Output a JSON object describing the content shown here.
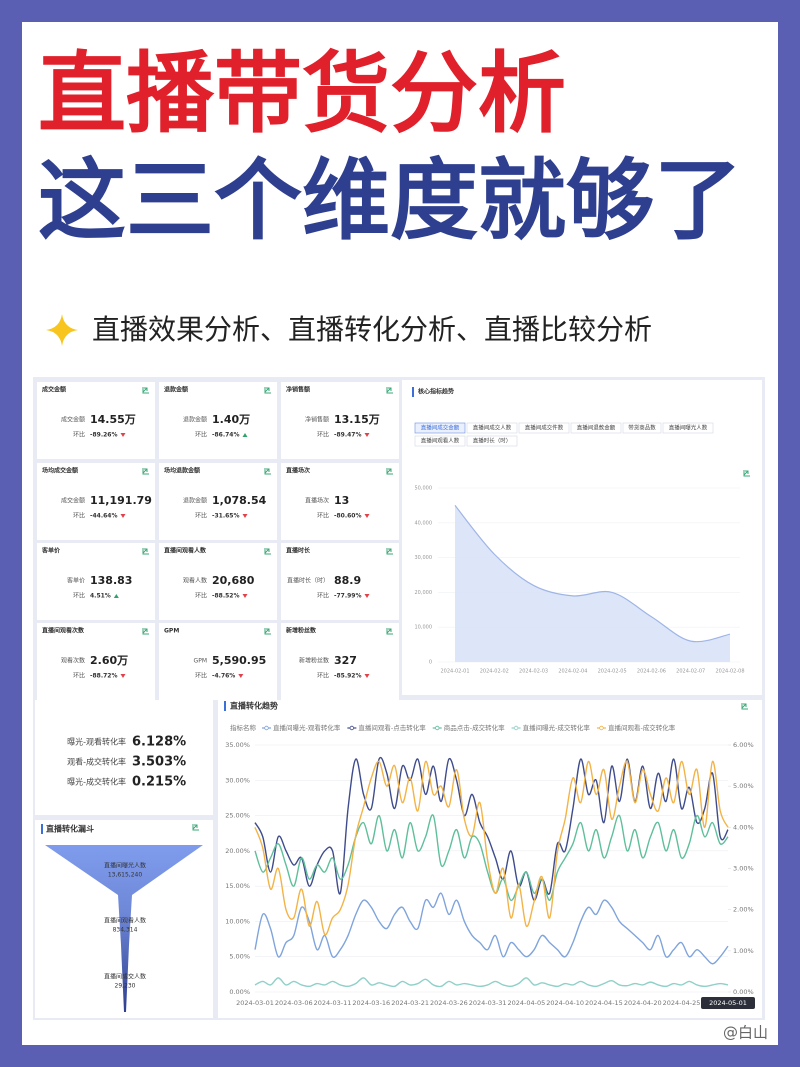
{
  "header": {
    "title_line1": "直播带货分析",
    "title_line2": "这三个维度就够了",
    "subtitle": "直播效果分析、直播转化分析、直播比较分析"
  },
  "kpi_cards": [
    {
      "title": "成交金额",
      "metric": "成交金额",
      "value": "14.55万",
      "change_label": "环比",
      "change": "-89.26%",
      "trend": "down"
    },
    {
      "title": "退款金额",
      "metric": "退款金额",
      "value": "1.40万",
      "change_label": "环比",
      "change": "-86.74%",
      "trend": "up"
    },
    {
      "title": "净销售额",
      "metric": "净销售额",
      "value": "13.15万",
      "change_label": "环比",
      "change": "-89.47%",
      "trend": "down"
    },
    {
      "title": "场均成交金额",
      "metric": "成交金额",
      "value": "11,191.79",
      "change_label": "环比",
      "change": "-44.64%",
      "trend": "down"
    },
    {
      "title": "场均退款金额",
      "metric": "退款金额",
      "value": "1,078.54",
      "change_label": "环比",
      "change": "-31.65%",
      "trend": "down"
    },
    {
      "title": "直播场次",
      "metric": "直播场次",
      "value": "13",
      "change_label": "环比",
      "change": "-80.60%",
      "trend": "down"
    },
    {
      "title": "客单价",
      "metric": "客单价",
      "value": "138.83",
      "change_label": "环比",
      "change": "4.51%",
      "trend": "up"
    },
    {
      "title": "直播间观看人数",
      "metric": "观看人数",
      "value": "20,680",
      "change_label": "环比",
      "change": "-88.52%",
      "trend": "down"
    },
    {
      "title": "直播时长",
      "metric": "直播时长（时）",
      "value": "88.9",
      "change_label": "环比",
      "change": "-77.99%",
      "trend": "down"
    },
    {
      "title": "直播间观看次数",
      "metric": "观看次数",
      "value": "2.60万",
      "change_label": "环比",
      "change": "-88.72%",
      "trend": "down"
    },
    {
      "title": "GPM",
      "metric": "GPM",
      "value": "5,590.95",
      "change_label": "环比",
      "change": "-4.76%",
      "trend": "down"
    },
    {
      "title": "新增粉丝数",
      "metric": "新增粉丝数",
      "value": "327",
      "change_label": "环比",
      "change": "-85.92%",
      "trend": "down"
    }
  ],
  "conversion_rates": [
    {
      "label": "曝光-观看转化率",
      "value": "6.128%"
    },
    {
      "label": "观看-成交转化率",
      "value": "3.503%"
    },
    {
      "label": "曝光-成交转化率",
      "value": "0.215%"
    }
  ],
  "funnel": {
    "title": "直播转化漏斗",
    "stages": [
      {
        "label": "直播间曝光人数",
        "value": "13,615,240"
      },
      {
        "label": "直播间观看人数",
        "value": "834,314"
      },
      {
        "label": "直播间成交人数",
        "value": "29,230"
      }
    ]
  },
  "watermark": "@白山",
  "chart_data": [
    {
      "type": "area",
      "title": "核心指标趋势",
      "tabs": [
        "直播间成交金额",
        "直播间成交人数",
        "直播间成交件数",
        "直播间退款金额",
        "带货商品数",
        "直播间曝光人数",
        "直播间观看人数",
        "直播时长（时）"
      ],
      "selected_tab": 0,
      "categories": [
        "2024-02-01",
        "2024-02-02",
        "2024-02-03",
        "2024-02-04",
        "2024-02-05",
        "2024-02-06",
        "2024-02-07",
        "2024-02-08"
      ],
      "values": [
        45000,
        31000,
        22000,
        19000,
        20000,
        13000,
        6000,
        8000
      ],
      "color": "#9fb5e6",
      "ylim": [
        0,
        50000
      ],
      "yticks": [
        0,
        {
          "value": 10000,
          "label": "10,000"
        },
        {
          "value": 20000,
          "label": "20,000"
        },
        {
          "value": 30000,
          "label": "30,000"
        },
        {
          "value": 40000,
          "label": "40,000"
        },
        {
          "value": 50000,
          "label": "50,000"
        }
      ],
      "grid": true
    },
    {
      "type": "line",
      "title": "直播转化趋势",
      "legend_title": "指标名称",
      "categories": [
        "2024-03-01",
        null,
        null,
        null,
        null,
        "2024-03-06",
        null,
        null,
        null,
        null,
        "2024-03-11",
        null,
        null,
        null,
        null,
        "2024-03-16",
        null,
        null,
        null,
        null,
        "2024-03-21",
        null,
        null,
        null,
        null,
        "2024-03-26",
        null,
        null,
        null,
        null,
        "2024-03-31",
        null,
        null,
        null,
        null,
        "2024-04-05",
        null,
        null,
        null,
        null,
        "2024-04-10",
        null,
        null,
        null,
        null,
        "2024-04-15",
        null,
        null,
        null,
        null,
        "2024-04-20",
        null,
        null,
        null,
        null,
        "2024-04-25",
        null,
        null,
        null,
        null,
        null,
        "2024-05-01"
      ],
      "highlight_index": 61,
      "series": [
        {
          "name": "直播间曝光-观看转化率",
          "color": "#7fa4dc",
          "values": [
            6,
            11,
            9,
            5,
            7,
            8,
            12,
            10,
            6,
            8,
            5,
            6,
            8,
            11,
            13,
            12,
            10,
            9,
            11,
            12,
            10,
            9,
            13,
            12,
            14,
            11,
            13,
            10,
            8,
            7,
            6,
            8,
            5,
            7,
            6,
            5,
            6,
            8,
            7,
            6,
            5,
            7,
            10,
            12,
            11,
            13,
            12,
            10,
            9,
            8,
            7,
            6,
            8,
            5,
            6,
            7,
            5,
            6,
            5,
            4,
            5,
            6.5
          ]
        },
        {
          "name": "直播间观看-点击转化率",
          "color": "#3f4c8c",
          "values": [
            24,
            22,
            17,
            22,
            20,
            18,
            19,
            15,
            18,
            20,
            20,
            14,
            26,
            33,
            28,
            26,
            33,
            31,
            26,
            32,
            30,
            33,
            28,
            32,
            27,
            33,
            30,
            25,
            28,
            24,
            22,
            19,
            16,
            20,
            15,
            17,
            13,
            16,
            14,
            21,
            20,
            26,
            33,
            28,
            30,
            24,
            32,
            27,
            33,
            27,
            32,
            26,
            31,
            27,
            33,
            26,
            29,
            24,
            26,
            31,
            22,
            23
          ]
        },
        {
          "name": "商品点击-成交转化率",
          "color": "#5fbf9a",
          "values": [
            20,
            17,
            19,
            21,
            18,
            15,
            19,
            16,
            18,
            17,
            19,
            16,
            18,
            22,
            24,
            21,
            25,
            20,
            23,
            19,
            24,
            20,
            22,
            25,
            18,
            20,
            23,
            19,
            22,
            21,
            17,
            14,
            16,
            13,
            15,
            17,
            14,
            16,
            13,
            17,
            19,
            21,
            24,
            20,
            23,
            19,
            22,
            25,
            20,
            23,
            19,
            22,
            24,
            20,
            23,
            19,
            21,
            25,
            22,
            24,
            21,
            22
          ]
        },
        {
          "name": "直播间曝光-成交转化率",
          "color": "#8fd0c8",
          "values": [
            1,
            1.5,
            1,
            2,
            1,
            1.5,
            1,
            0.8,
            1.2,
            1,
            1.5,
            1,
            0.8,
            1.2,
            2,
            1,
            1.3,
            1,
            0.8,
            1.5,
            1,
            1.2,
            1.8,
            1,
            0.8,
            1.5,
            1,
            1.2,
            1,
            0.8,
            1,
            1.5,
            1,
            0.8,
            1.2,
            2,
            1,
            1.3,
            1,
            0.8,
            1.2,
            1,
            1.5,
            1,
            0.8,
            1.2,
            1.6,
            1,
            0.9,
            1.2,
            1,
            1.4,
            1,
            0.8,
            1.2,
            1,
            1.5,
            1,
            0.8,
            1,
            1.2,
            1
          ]
        },
        {
          "name": "直播间观看-成交转化率",
          "color": "#f2b347",
          "axis": "y2",
          "values": [
            4.0,
            3.5,
            2.5,
            3.0,
            2.0,
            1.8,
            2.5,
            1.6,
            2.2,
            1.4,
            1.8,
            2.0,
            2.6,
            3.8,
            4.5,
            5.2,
            5.6,
            5.0,
            5.5,
            4.6,
            5.2,
            4.4,
            5.6,
            4.8,
            5.0,
            4.5,
            5.4,
            4.2,
            3.8,
            4.6,
            3.2,
            2.4,
            3.0,
            1.8,
            2.6,
            1.6,
            2.2,
            2.8,
            1.8,
            3.4,
            4.2,
            5.2,
            4.6,
            5.6,
            4.8,
            5.4,
            4.2,
            5.0,
            5.6,
            4.6,
            5.4,
            4.8,
            4.4,
            5.2,
            4.6,
            5.6,
            4.8,
            5.4,
            4.0,
            5.6,
            4.4,
            4.0
          ]
        }
      ],
      "ylim": [
        0,
        35
      ],
      "yticks": [
        {
          "value": 0,
          "label": "0.00%"
        },
        {
          "value": 5,
          "label": "5.00%"
        },
        {
          "value": 10,
          "label": "10.00%"
        },
        {
          "value": 15,
          "label": "15.00%"
        },
        {
          "value": 20,
          "label": "20.00%"
        },
        {
          "value": 25,
          "label": "25.00%"
        },
        {
          "value": 30,
          "label": "30.00%"
        },
        {
          "value": 35,
          "label": "35.00%"
        }
      ],
      "y2lim": [
        0,
        6
      ],
      "y2ticks": [
        {
          "value": 0,
          "label": "0.00%"
        },
        {
          "value": 1,
          "label": "1.00%"
        },
        {
          "value": 2,
          "label": "2.00%"
        },
        {
          "value": 3,
          "label": "3.00%"
        },
        {
          "value": 4,
          "label": "4.00%"
        },
        {
          "value": 5,
          "label": "5.00%"
        },
        {
          "value": 6,
          "label": "6.00%"
        }
      ],
      "grid": true
    }
  ]
}
